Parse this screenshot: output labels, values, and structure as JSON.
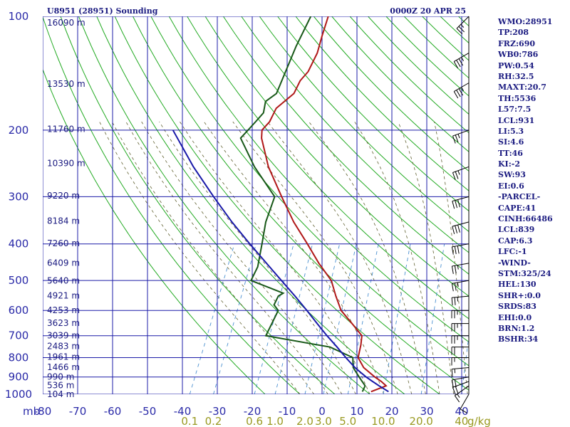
{
  "header": {
    "station": "U8951 (28951) Sounding",
    "time": "0000Z 20 APR 25"
  },
  "side_panel": [
    "WMO:28951",
    "TP:208",
    "FRZ:690",
    "WB0:786",
    "PW:0.54",
    "RH:32.5",
    "MAXT:20.7",
    "TH:5536",
    "L57:7.5",
    "LCL:931",
    "LI:5.3",
    "SI:4.6",
    "TT:46",
    "KI:-2",
    "SW:93",
    "EI:0.6",
    "-PARCEL-",
    "CAPE:41",
    "CINH:66486",
    "LCL:839",
    "CAP:6.3",
    "LFC:-1",
    "-WIND-",
    "STM:325/24",
    "HEL:130",
    "SHR+:0.0",
    "SRDS:83",
    "EHI:0.0",
    "BRN:1.2",
    "BSHR:34"
  ],
  "colors": {
    "grid": "#1c1ca8",
    "dry_adiabat": "#22aa22",
    "moist_adiabat": "#606030",
    "mixing_ratio": "#4a90d0",
    "temperature": "#b01818",
    "dewpoint": "#185818",
    "parcel": "#1818a8"
  },
  "chart_data": {
    "type": "line",
    "title": "U8951 (28951) Sounding",
    "subtitle": "0000Z 20 APR 25",
    "x_label": "",
    "y_label": "mb",
    "pressure_ticks": [
      "100",
      "200",
      "300",
      "400",
      "500",
      "600",
      "700",
      "800",
      "900",
      "1000"
    ],
    "pressure_axis_label": "mb",
    "temperature_ticks": [
      "-80",
      "-70",
      "-60",
      "-50",
      "-40",
      "-30",
      "-20",
      "-10",
      "0",
      "10",
      "20",
      "30",
      "40"
    ],
    "mixing_ratio_ticks": [
      "0.1",
      "0.2",
      "0.6",
      "1.0",
      "2.0",
      "3.0",
      "5.0",
      "10.0",
      "20.0",
      "40"
    ],
    "mixing_ratio_unit": "g/kg",
    "height_labels": [
      {
        "p": 104,
        "text": "16090 m"
      },
      {
        "p": 151,
        "text": "13530 m"
      },
      {
        "p": 199,
        "text": "11760 m"
      },
      {
        "p": 245,
        "text": "10390 m"
      },
      {
        "p": 298,
        "text": "9220 m"
      },
      {
        "p": 348,
        "text": "8184 m"
      },
      {
        "p": 399,
        "text": "7260 m"
      },
      {
        "p": 449,
        "text": "6409 m"
      },
      {
        "p": 501,
        "text": "5640 m"
      },
      {
        "p": 549,
        "text": "4921 m"
      },
      {
        "p": 599,
        "text": "4253 m"
      },
      {
        "p": 648,
        "text": "3623 m"
      },
      {
        "p": 700,
        "text": "3039 m"
      },
      {
        "p": 747,
        "text": "2483 m"
      },
      {
        "p": 797,
        "text": "1961 m"
      },
      {
        "p": 848,
        "text": "1466 m"
      },
      {
        "p": 899,
        "text": "990 m"
      },
      {
        "p": 948,
        "text": "536 m"
      },
      {
        "p": 1000,
        "text": "104 m"
      }
    ],
    "series": [
      {
        "key": "temperature",
        "points": [
          [
            984,
            10.0
          ],
          [
            950,
            13.5
          ],
          [
            925,
            11.5
          ],
          [
            900,
            9.0
          ],
          [
            850,
            4.5
          ],
          [
            800,
            1.5
          ],
          [
            740,
            0.5
          ],
          [
            700,
            -0.5
          ],
          [
            650,
            -5
          ],
          [
            600,
            -10
          ],
          [
            550,
            -13.5
          ],
          [
            500,
            -17
          ],
          [
            450,
            -23
          ],
          [
            400,
            -29
          ],
          [
            350,
            -36
          ],
          [
            300,
            -43
          ],
          [
            250,
            -51
          ],
          [
            210,
            -57
          ],
          [
            200,
            -58
          ],
          [
            190,
            -57
          ],
          [
            175,
            -57
          ],
          [
            160,
            -54
          ],
          [
            148,
            -54
          ],
          [
            140,
            -53
          ],
          [
            125,
            -53
          ],
          [
            113,
            -54
          ],
          [
            100,
            -55
          ]
        ]
      },
      {
        "key": "dewpoint",
        "points": [
          [
            984,
            7.5
          ],
          [
            950,
            7.5
          ],
          [
            900,
            4.5
          ],
          [
            850,
            1.5
          ],
          [
            800,
            0
          ],
          [
            750,
            -8
          ],
          [
            700,
            -28
          ],
          [
            650,
            -28
          ],
          [
            600,
            -28
          ],
          [
            580,
            -30
          ],
          [
            550,
            -30
          ],
          [
            540,
            -29
          ],
          [
            500,
            -40
          ],
          [
            460,
            -40
          ],
          [
            400,
            -42
          ],
          [
            350,
            -44
          ],
          [
            300,
            -45
          ],
          [
            250,
            -55
          ],
          [
            210,
            -63
          ],
          [
            200,
            -62
          ],
          [
            190,
            -61
          ],
          [
            180,
            -60
          ],
          [
            168,
            -61
          ],
          [
            160,
            -59
          ],
          [
            120,
            -60
          ],
          [
            100,
            -60
          ]
        ]
      },
      {
        "key": "parcel",
        "points": [
          [
            984,
            15.0
          ],
          [
            950,
            11.5
          ],
          [
            925,
            9.0
          ],
          [
            900,
            6.5
          ],
          [
            850,
            2.0
          ],
          [
            800,
            -2.0
          ],
          [
            750,
            -6.0
          ],
          [
            700,
            -10.5
          ],
          [
            650,
            -15.0
          ],
          [
            600,
            -19.8
          ],
          [
            550,
            -25.2
          ],
          [
            500,
            -31.3
          ],
          [
            450,
            -38.0
          ],
          [
            400,
            -45.5
          ],
          [
            350,
            -53.7
          ],
          [
            300,
            -62.5
          ],
          [
            250,
            -72.5
          ],
          [
            200,
            -83.5
          ]
        ]
      }
    ],
    "wind_barbs": [
      {
        "p": 100,
        "dir": 225,
        "kt": 25
      },
      {
        "p": 125,
        "dir": 240,
        "kt": 35
      },
      {
        "p": 150,
        "dir": 240,
        "kt": 35
      },
      {
        "p": 200,
        "dir": 250,
        "kt": 25
      },
      {
        "p": 250,
        "dir": 250,
        "kt": 25
      },
      {
        "p": 300,
        "dir": 255,
        "kt": 30
      },
      {
        "p": 350,
        "dir": 255,
        "kt": 30
      },
      {
        "p": 400,
        "dir": 260,
        "kt": 30
      },
      {
        "p": 450,
        "dir": 260,
        "kt": 25
      },
      {
        "p": 500,
        "dir": 260,
        "kt": 25
      },
      {
        "p": 550,
        "dir": 265,
        "kt": 25
      },
      {
        "p": 600,
        "dir": 270,
        "kt": 25
      },
      {
        "p": 650,
        "dir": 270,
        "kt": 25
      },
      {
        "p": 700,
        "dir": 270,
        "kt": 25
      },
      {
        "p": 750,
        "dir": 270,
        "kt": 20
      },
      {
        "p": 800,
        "dir": 270,
        "kt": 15
      },
      {
        "p": 850,
        "dir": 265,
        "kt": 15
      },
      {
        "p": 900,
        "dir": 260,
        "kt": 20
      },
      {
        "p": 925,
        "dir": 250,
        "kt": 20
      },
      {
        "p": 950,
        "dir": 235,
        "kt": 15
      },
      {
        "p": 1000,
        "dir": 210,
        "kt": 10
      }
    ]
  }
}
